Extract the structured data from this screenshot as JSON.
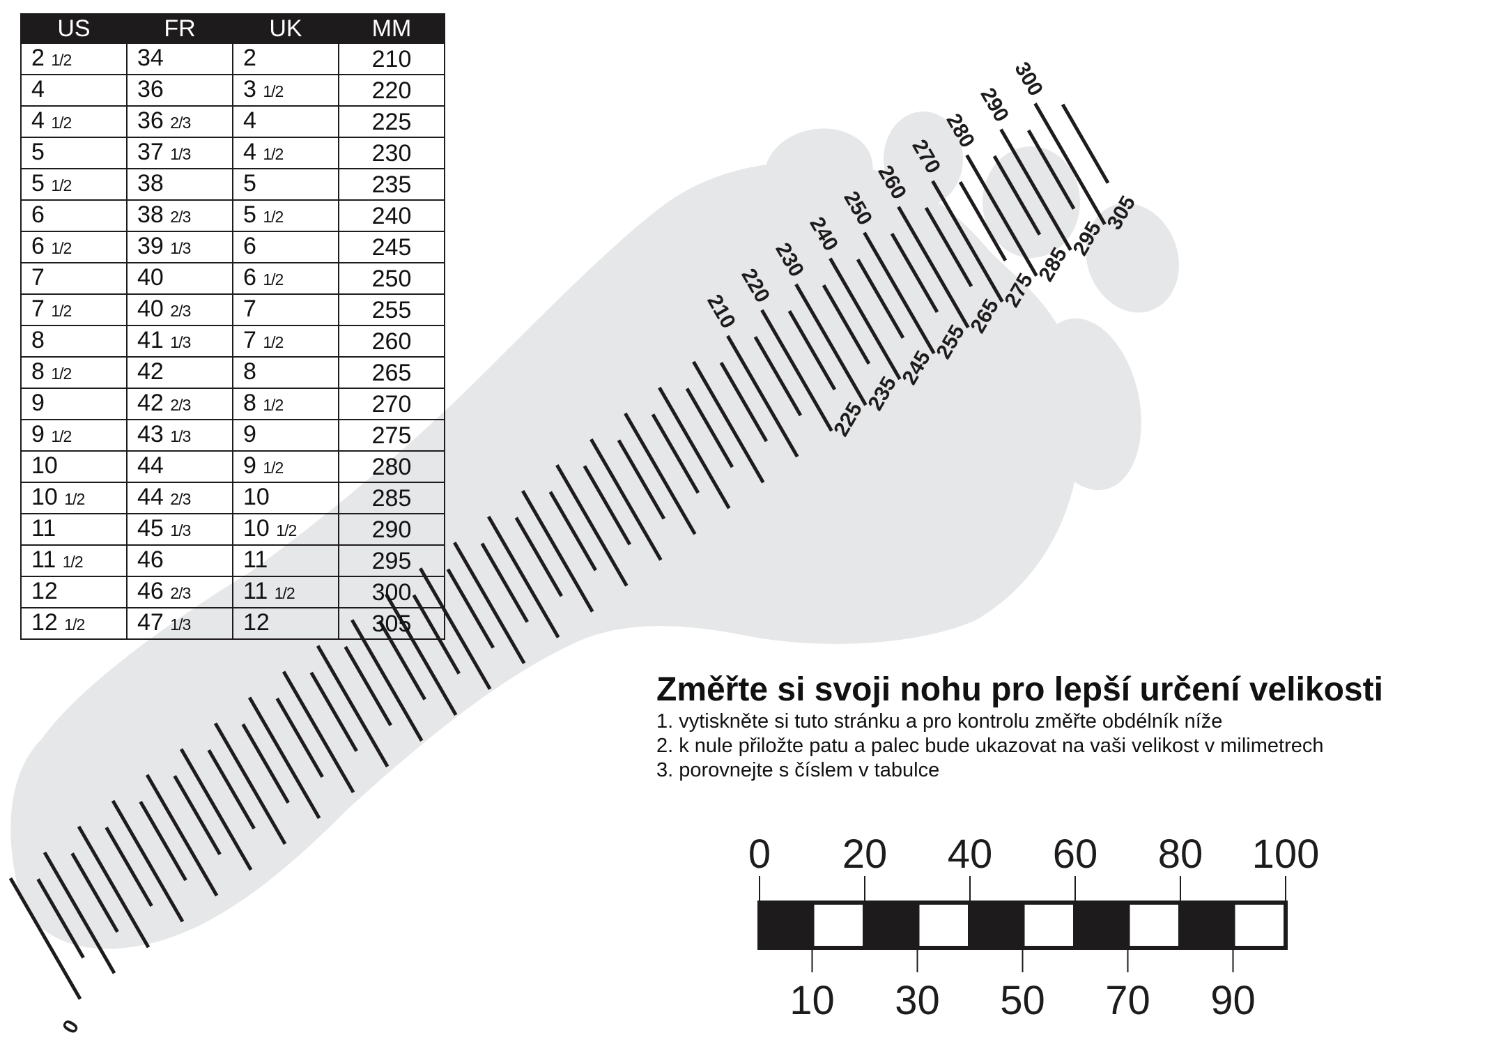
{
  "table": {
    "headers": [
      "US",
      "FR",
      "UK",
      "MM"
    ],
    "rows": [
      {
        "us": "2",
        "us_frac": "1/2",
        "fr": "34",
        "fr_frac": "",
        "uk": "2",
        "uk_frac": "",
        "mm": "210"
      },
      {
        "us": "4",
        "us_frac": "",
        "fr": "36",
        "fr_frac": "",
        "uk": "3",
        "uk_frac": "1/2",
        "mm": "220"
      },
      {
        "us": "4",
        "us_frac": "1/2",
        "fr": "36",
        "fr_frac": "2/3",
        "uk": "4",
        "uk_frac": "",
        "mm": "225"
      },
      {
        "us": "5",
        "us_frac": "",
        "fr": "37",
        "fr_frac": "1/3",
        "uk": "4",
        "uk_frac": "1/2",
        "mm": "230"
      },
      {
        "us": "5",
        "us_frac": "1/2",
        "fr": "38",
        "fr_frac": "",
        "uk": "5",
        "uk_frac": "",
        "mm": "235"
      },
      {
        "us": "6",
        "us_frac": "",
        "fr": "38",
        "fr_frac": "2/3",
        "uk": "5",
        "uk_frac": "1/2",
        "mm": "240"
      },
      {
        "us": "6",
        "us_frac": "1/2",
        "fr": "39",
        "fr_frac": "1/3",
        "uk": "6",
        "uk_frac": "",
        "mm": "245"
      },
      {
        "us": "7",
        "us_frac": "",
        "fr": "40",
        "fr_frac": "",
        "uk": "6",
        "uk_frac": "1/2",
        "mm": "250"
      },
      {
        "us": "7",
        "us_frac": "1/2",
        "fr": "40",
        "fr_frac": "2/3",
        "uk": "7",
        "uk_frac": "",
        "mm": "255"
      },
      {
        "us": "8",
        "us_frac": "",
        "fr": "41",
        "fr_frac": "1/3",
        "uk": "7",
        "uk_frac": "1/2",
        "mm": "260"
      },
      {
        "us": "8",
        "us_frac": "1/2",
        "fr": "42",
        "fr_frac": "",
        "uk": "8",
        "uk_frac": "",
        "mm": "265"
      },
      {
        "us": "9",
        "us_frac": "",
        "fr": "42",
        "fr_frac": "2/3",
        "uk": "8",
        "uk_frac": "1/2",
        "mm": "270"
      },
      {
        "us": "9",
        "us_frac": "1/2",
        "fr": "43",
        "fr_frac": "1/3",
        "uk": "9",
        "uk_frac": "",
        "mm": "275"
      },
      {
        "us": "10",
        "us_frac": "",
        "fr": "44",
        "fr_frac": "",
        "uk": "9",
        "uk_frac": "1/2",
        "mm": "280"
      },
      {
        "us": "10",
        "us_frac": "1/2",
        "fr": "44",
        "fr_frac": "2/3",
        "uk": "10",
        "uk_frac": "",
        "mm": "285"
      },
      {
        "us": "11",
        "us_frac": "",
        "fr": "45",
        "fr_frac": "1/3",
        "uk": "10",
        "uk_frac": "1/2",
        "mm": "290"
      },
      {
        "us": "11",
        "us_frac": "1/2",
        "fr": "46",
        "fr_frac": "",
        "uk": "11",
        "uk_frac": "",
        "mm": "295"
      },
      {
        "us": "12",
        "us_frac": "",
        "fr": "46",
        "fr_frac": "2/3",
        "uk": "11",
        "uk_frac": "1/2",
        "mm": "300"
      },
      {
        "us": "12",
        "us_frac": "1/2",
        "fr": "47",
        "fr_frac": "1/3",
        "uk": "12",
        "uk_frac": "",
        "mm": "305"
      }
    ]
  },
  "foot_scale": {
    "zero_label": "0",
    "labels_upper": [
      "210",
      "220",
      "230",
      "240",
      "250",
      "260",
      "270",
      "280",
      "290",
      "300"
    ],
    "labels_lower": [
      "225",
      "235",
      "245",
      "255",
      "265",
      "275",
      "285",
      "295",
      "305"
    ],
    "color": "#e6e7e8"
  },
  "instructions": {
    "title": "Změřte si svoji nohu pro lepší určení velikosti",
    "steps": [
      "1. vytiskněte si tuto stránku a pro kontrolu změřte obdélník níže",
      "2. k nule přiložte patu a palec bude ukazovat na vaši velikost v milimetrech",
      "3. porovnejte s číslem v tabulce"
    ]
  },
  "ruler": {
    "top_labels": [
      "0",
      "20",
      "40",
      "60",
      "80",
      "100"
    ],
    "bottom_labels": [
      "10",
      "30",
      "50",
      "70",
      "90"
    ],
    "colors": {
      "dark": "#1e1b1c",
      "light": "#ffffff"
    }
  }
}
